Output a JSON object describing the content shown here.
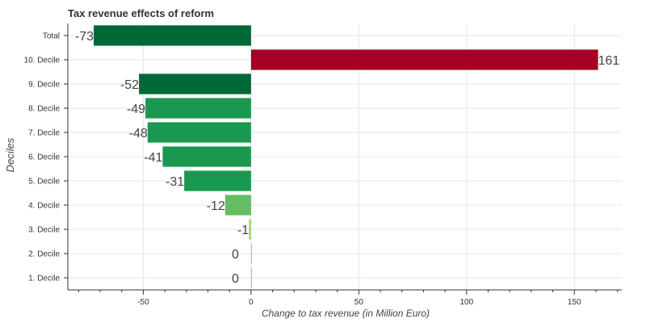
{
  "chart_data": {
    "type": "bar",
    "orientation": "horizontal",
    "title": "Tax revenue effects of reform",
    "xlabel": "Change to tax revenue (in Million Euro)",
    "ylabel": "Deciles",
    "categories": [
      "Total",
      "10. Decile",
      "9. Decile",
      "8. Decile",
      "7. Decile",
      "6. Decile",
      "5. Decile",
      "4. Decile",
      "3. Decile",
      "2. Decile",
      "1. Decile"
    ],
    "values": [
      -73,
      161,
      -52,
      -49,
      -48,
      -41,
      -31,
      -12,
      -1,
      0,
      0
    ],
    "value_labels": [
      "-73",
      "161",
      "-52",
      "-49",
      "-48",
      "-41",
      "-31",
      "-12",
      "-1",
      "0",
      "0"
    ],
    "colors": [
      "#006837",
      "#a50026",
      "#006837",
      "#1a9850",
      "#1a9850",
      "#1a9850",
      "#1a9850",
      "#66bd63",
      "#a6d96a",
      "#a6d96a",
      "#a6d96a"
    ],
    "xlim": [
      -85,
      172
    ],
    "xticks": [
      -50,
      0,
      50,
      100,
      150
    ],
    "xtick_labels": [
      "-50",
      "0",
      "50",
      "100",
      "150"
    ],
    "grid": true,
    "legend": "none"
  }
}
